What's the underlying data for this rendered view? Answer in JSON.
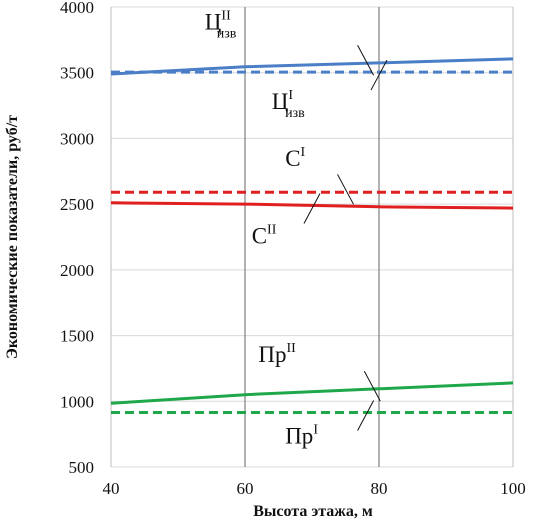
{
  "chart_data": {
    "type": "line",
    "xlabel": "Высота этажа, м",
    "ylabel": "Экономические показатели, руб/т",
    "xlim": [
      40,
      100
    ],
    "ylim": [
      500,
      4000
    ],
    "x_ticks": [
      "40",
      "60",
      "80",
      "100"
    ],
    "y_ticks": [
      "500",
      "1000",
      "1500",
      "2000",
      "2500",
      "3000",
      "3500",
      "4000"
    ],
    "x_ticks_values": [
      40,
      60,
      80,
      100
    ],
    "y_ticks_values": [
      500,
      1000,
      1500,
      2000,
      2500,
      3000,
      3500,
      4000
    ],
    "vertical_gridlines": [
      60,
      80
    ],
    "series": [
      {
        "key": "price_II",
        "color": "#4a7ec6",
        "dash": false,
        "x": [
          40,
          60,
          80,
          100
        ],
        "y": [
          3490,
          3545,
          3575,
          3605
        ]
      },
      {
        "key": "price_I",
        "color": "#4a7ec6",
        "dash": true,
        "x": [
          40,
          60,
          80,
          100
        ],
        "y": [
          3505,
          3505,
          3505,
          3505
        ]
      },
      {
        "key": "cost_I",
        "color": "#e02020",
        "dash": true,
        "x": [
          40,
          60,
          80,
          100
        ],
        "y": [
          2590,
          2590,
          2590,
          2590
        ]
      },
      {
        "key": "cost_II",
        "color": "#e02020",
        "dash": false,
        "x": [
          40,
          60,
          80,
          100
        ],
        "y": [
          2510,
          2500,
          2480,
          2470
        ]
      },
      {
        "key": "profit_II",
        "color": "#1fa84a",
        "dash": false,
        "x": [
          40,
          60,
          80,
          100
        ],
        "y": [
          985,
          1050,
          1095,
          1140
        ]
      },
      {
        "key": "profit_I",
        "color": "#1fa84a",
        "dash": true,
        "x": [
          40,
          60,
          80,
          100
        ],
        "y": [
          915,
          915,
          915,
          915
        ]
      }
    ],
    "annotations": [
      {
        "key": "price_II",
        "base": "Ц",
        "sup": "II",
        "sub": "изв",
        "series": "price_II",
        "at_x": 78,
        "text_x": 54,
        "text_y": 3830
      },
      {
        "key": "price_I",
        "base": "Ц",
        "sup": "I",
        "sub": "изв",
        "series": "price_I",
        "at_x": 80,
        "text_x": 64,
        "text_y": 3225
      },
      {
        "key": "cost_I",
        "base": "С",
        "sup": "I",
        "sub": "",
        "series": "cost_I",
        "at_x": 75,
        "text_x": 66,
        "text_y": 2790
      },
      {
        "key": "cost_II",
        "base": "С",
        "sup": "II",
        "sub": "",
        "series": "cost_II",
        "at_x": 70,
        "text_x": 61,
        "text_y": 2200
      },
      {
        "key": "profit_II",
        "base": "Пр",
        "sup": "II",
        "sub": "",
        "series": "profit_II",
        "at_x": 79,
        "text_x": 62,
        "text_y": 1300
      },
      {
        "key": "profit_I",
        "base": "Пр",
        "sup": "I",
        "sub": "",
        "series": "profit_I",
        "at_x": 78,
        "text_x": 66,
        "text_y": 680
      }
    ]
  }
}
